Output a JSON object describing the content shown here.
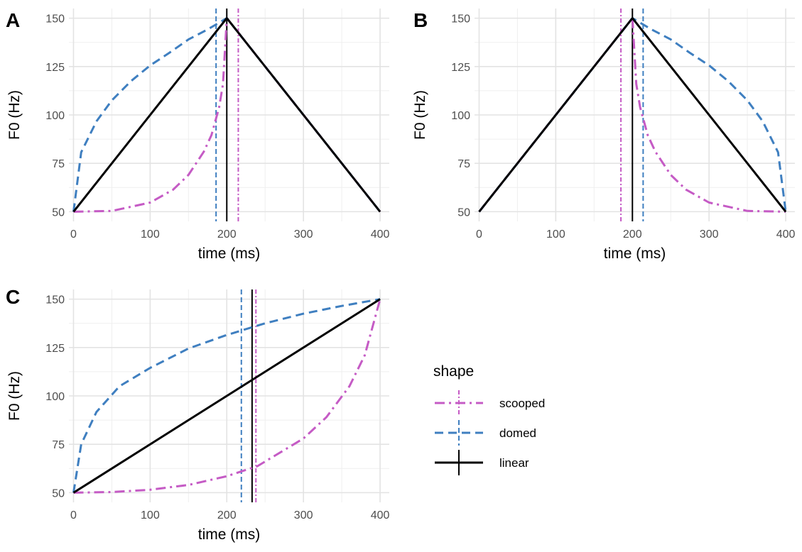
{
  "chart_data": [
    {
      "type": "line",
      "panel": "A",
      "xlabel": "time (ms)",
      "ylabel": "F0 (Hz)",
      "xlim": [
        -6,
        412
      ],
      "ylim": [
        45,
        155
      ],
      "x_ticks": [
        "0",
        "100",
        "200",
        "300",
        "400"
      ],
      "y_ticks": [
        "50",
        "75",
        "100",
        "125",
        "150"
      ],
      "grid": true,
      "series": [
        {
          "name": "scooped",
          "color": "#c55bc5",
          "dash": "dashdot",
          "points": [
            [
              0,
              50
            ],
            [
              50,
              50.4
            ],
            [
              100,
              54.7
            ],
            [
              130,
              61.4
            ],
            [
              150,
              69
            ],
            [
              170,
              81
            ],
            [
              180,
              89.6
            ],
            [
              190,
              104
            ],
            [
              195,
              116
            ],
            [
              200,
              150
            ],
            [
              400,
              50
            ]
          ],
          "vline": 215
        },
        {
          "name": "domed",
          "color": "#3f7fc0",
          "dash": "dashed",
          "points": [
            [
              0,
              50
            ],
            [
              10,
              80.7
            ],
            [
              30,
              96.7
            ],
            [
              50,
              107.5
            ],
            [
              75,
              117.5
            ],
            [
              100,
              125.6
            ],
            [
              125,
              132.1
            ],
            [
              150,
              139
            ],
            [
              175,
              144.2
            ],
            [
              200,
              150
            ],
            [
              400,
              50
            ]
          ],
          "vline": 186
        },
        {
          "name": "linear",
          "color": "#000000",
          "dash": "solid",
          "points": [
            [
              0,
              50
            ],
            [
              200,
              150
            ],
            [
              400,
              50
            ]
          ],
          "vline": 200
        }
      ]
    },
    {
      "type": "line",
      "panel": "B",
      "xlabel": "time (ms)",
      "ylabel": "F0 (Hz)",
      "xlim": [
        -6,
        412
      ],
      "ylim": [
        45,
        155
      ],
      "x_ticks": [
        "0",
        "100",
        "200",
        "300",
        "400"
      ],
      "y_ticks": [
        "50",
        "75",
        "100",
        "125",
        "150"
      ],
      "grid": true,
      "series": [
        {
          "name": "scooped",
          "color": "#c55bc5",
          "dash": "dashdot",
          "points": [
            [
              0,
              50
            ],
            [
              200,
              150
            ],
            [
              205,
              116
            ],
            [
              210,
              104
            ],
            [
              220,
              89.6
            ],
            [
              230,
              81
            ],
            [
              250,
              69
            ],
            [
              270,
              61.4
            ],
            [
              300,
              54.7
            ],
            [
              350,
              50.4
            ],
            [
              400,
              50
            ]
          ],
          "vline": 185
        },
        {
          "name": "domed",
          "color": "#3f7fc0",
          "dash": "dashed",
          "points": [
            [
              0,
              50
            ],
            [
              200,
              150
            ],
            [
              225,
              144.2
            ],
            [
              250,
              139
            ],
            [
              275,
              132.1
            ],
            [
              300,
              125.6
            ],
            [
              325,
              117.5
            ],
            [
              350,
              107.5
            ],
            [
              370,
              96.7
            ],
            [
              390,
              80.7
            ],
            [
              400,
              50
            ]
          ],
          "vline": 214
        },
        {
          "name": "linear",
          "color": "#000000",
          "dash": "solid",
          "points": [
            [
              0,
              50
            ],
            [
              200,
              150
            ],
            [
              400,
              50
            ]
          ],
          "vline": 200
        }
      ]
    },
    {
      "type": "line",
      "panel": "C",
      "xlabel": "time (ms)",
      "ylabel": "F0 (Hz)",
      "xlim": [
        -6,
        412
      ],
      "ylim": [
        45,
        155
      ],
      "x_ticks": [
        "0",
        "100",
        "200",
        "300",
        "400"
      ],
      "y_ticks": [
        "50",
        "75",
        "100",
        "125",
        "150"
      ],
      "grid": true,
      "series": [
        {
          "name": "scooped",
          "color": "#c55bc5",
          "dash": "dashdot",
          "points": [
            [
              0,
              50
            ],
            [
              50,
              50.3
            ],
            [
              100,
              51.5
            ],
            [
              150,
              54
            ],
            [
              200,
              58.5
            ],
            [
              240,
              63.7
            ],
            [
              300,
              78
            ],
            [
              330,
              89
            ],
            [
              360,
              105
            ],
            [
              380,
              121
            ],
            [
              400,
              150
            ]
          ],
          "vline": 238
        },
        {
          "name": "domed",
          "color": "#3f7fc0",
          "dash": "dashed",
          "points": [
            [
              0,
              50
            ],
            [
              10,
              75
            ],
            [
              30,
              91.7
            ],
            [
              60,
              105
            ],
            [
              100,
              114.5
            ],
            [
              150,
              124.5
            ],
            [
              200,
              131.5
            ],
            [
              250,
              137.5
            ],
            [
              300,
              142.5
            ],
            [
              350,
              146.5
            ],
            [
              400,
              150
            ]
          ],
          "vline": 219
        },
        {
          "name": "linear",
          "color": "#000000",
          "dash": "solid",
          "points": [
            [
              0,
              50
            ],
            [
              400,
              150
            ]
          ],
          "vline": 233
        }
      ]
    }
  ],
  "legend": {
    "title": "shape",
    "placement": "right",
    "items": [
      {
        "label": "scooped",
        "color": "#c55bc5",
        "dash": "dashdot"
      },
      {
        "label": "domed",
        "color": "#3f7fc0",
        "dash": "dashed"
      },
      {
        "label": "linear",
        "color": "#000000",
        "dash": "solid"
      }
    ]
  },
  "colors": {
    "grid_major": "#e3e3e3",
    "grid_minor": "#efefef",
    "tick_text": "#4d4d4d"
  }
}
